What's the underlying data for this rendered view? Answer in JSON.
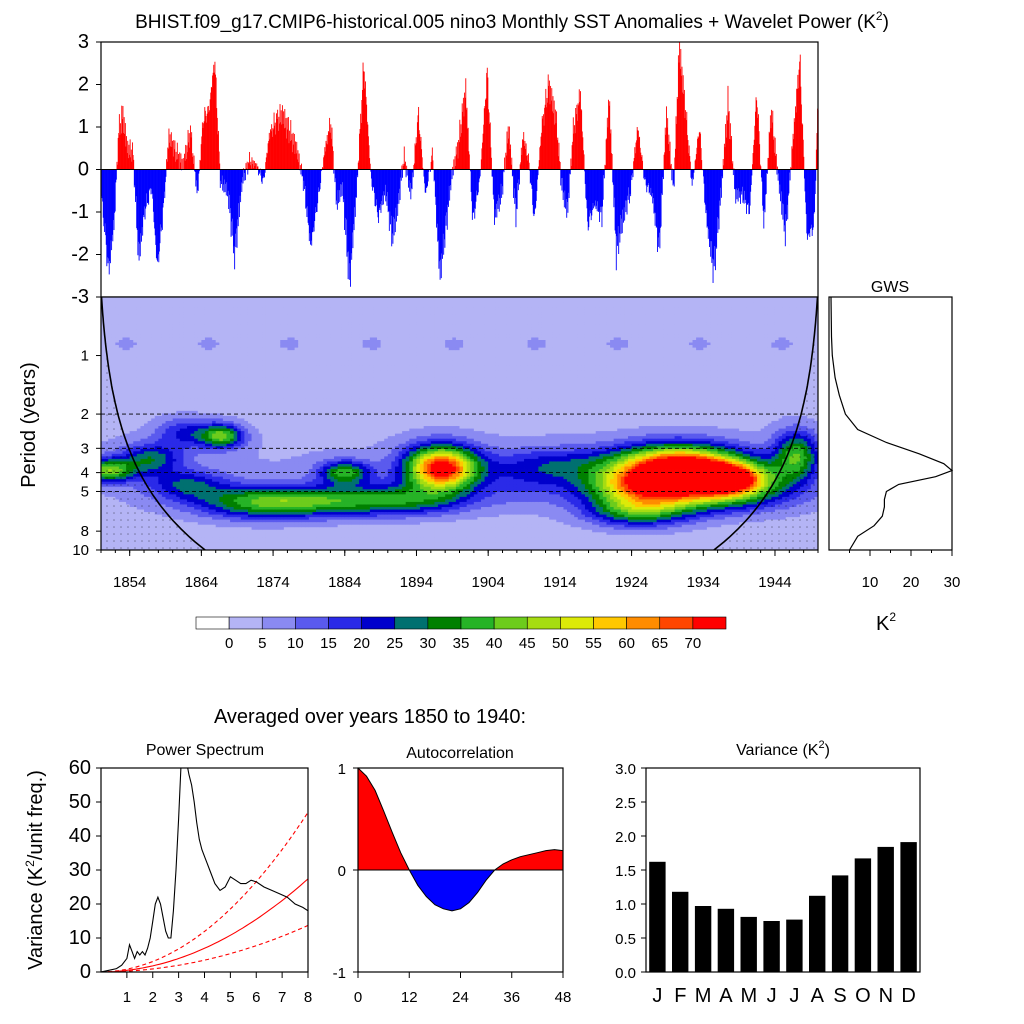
{
  "title": "BHIST.f09_g17.CMIP6-historical.005 nino3 Monthly SST Anomalies + Wavelet Power (K",
  "title_sup": "2",
  "title_close": ")",
  "colors": {
    "positive": "#ff0000",
    "negative": "#0000ff",
    "line": "#000000",
    "sig": "#ff0000"
  },
  "chart_data": [
    {
      "type": "area",
      "name": "sst-anomaly-timeseries",
      "ylim": [
        -3,
        3
      ],
      "yticks": [
        "3",
        "2",
        "1",
        "0",
        "-1",
        "-2",
        "-3"
      ],
      "ytick_values": [
        3,
        2,
        1,
        0,
        -1,
        -2,
        -3
      ],
      "xlim": [
        1850,
        1950
      ],
      "x": [
        1850.0,
        1851.0,
        1851.8,
        1852.4,
        1853.0,
        1853.6,
        1854.4,
        1855.2,
        1856.0,
        1857.0,
        1857.8,
        1858.6,
        1859.4,
        1860.4,
        1861.4,
        1862.4,
        1863.4,
        1864.2,
        1865.0,
        1865.8,
        1866.6,
        1867.6,
        1868.6,
        1869.6,
        1870.6,
        1871.6,
        1872.6,
        1873.4,
        1874.2,
        1875.2,
        1876.2,
        1877.2,
        1878.2,
        1879.2,
        1880.2,
        1881.2,
        1882.0,
        1882.8,
        1883.6,
        1884.6,
        1885.6,
        1886.6,
        1887.6,
        1888.6,
        1889.6,
        1890.6,
        1891.4,
        1892.2,
        1893.2,
        1894.2,
        1895.2,
        1896.2,
        1897.2,
        1898.0,
        1898.8,
        1899.8,
        1900.8,
        1901.8,
        1902.8,
        1903.8,
        1904.8,
        1905.8,
        1906.8,
        1907.8,
        1908.8,
        1909.6,
        1910.4,
        1911.4,
        1912.4,
        1913.4,
        1914.2,
        1915.0,
        1915.8,
        1916.8,
        1917.8,
        1918.8,
        1919.8,
        1920.8,
        1921.8,
        1922.8,
        1923.8,
        1924.8,
        1925.8,
        1926.8,
        1927.8,
        1928.8,
        1929.8,
        1930.6,
        1931.4,
        1932.4,
        1933.4,
        1934.4,
        1935.4,
        1936.4,
        1937.4,
        1938.4,
        1939.4,
        1940.4,
        1941.4,
        1942.4,
        1943.4,
        1944.4,
        1945.4,
        1946.4,
        1947.4,
        1948.4,
        1949.4,
        1950.0
      ],
      "y": [
        -0.6,
        -2.4,
        -1.2,
        0.9,
        1.3,
        0.5,
        0.4,
        -2.1,
        -1.0,
        -0.4,
        -2.3,
        -1.0,
        0.8,
        0.4,
        0.1,
        0.9,
        -0.6,
        1.2,
        1.4,
        2.6,
        -0.3,
        -0.5,
        -2.0,
        -0.3,
        0.2,
        0.1,
        -0.3,
        0.8,
        1.1,
        1.3,
        0.9,
        0.5,
        -0.3,
        -1.8,
        -0.7,
        0.5,
        1.1,
        -0.8,
        -0.4,
        -2.6,
        -0.5,
        2.5,
        -0.2,
        -1.1,
        -0.5,
        -1.6,
        -0.8,
        0.3,
        -0.6,
        1.3,
        -0.6,
        0.4,
        -2.5,
        -1.4,
        -0.2,
        0.6,
        1.9,
        -1.2,
        -0.2,
        2.3,
        -1.1,
        -0.6,
        1.0,
        -1.1,
        0.8,
        0.2,
        -1.2,
        1.0,
        2.0,
        1.2,
        -0.4,
        -1.0,
        0.9,
        1.8,
        -1.3,
        -0.8,
        -1.1,
        1.7,
        -1.9,
        -1.1,
        -0.5,
        1.0,
        -0.3,
        -0.6,
        -1.9,
        1.3,
        -0.5,
        2.9,
        1.5,
        -0.4,
        1.0,
        -1.2,
        -2.4,
        -0.6,
        1.6,
        -0.6,
        -0.6,
        -1.0,
        1.8,
        -1.3,
        1.4,
        -0.2,
        -1.5,
        0.6,
        2.6,
        -1.6,
        -1.3,
        1.9
      ]
    },
    {
      "type": "heatmap",
      "name": "wavelet-power",
      "ylabel": "Period (years)",
      "period_ticks": [
        "1",
        "2",
        "3",
        "4",
        "5",
        "8",
        "10"
      ],
      "period_tick_values": [
        1,
        2,
        3,
        4,
        5,
        8,
        10
      ],
      "period_range": [
        0.5,
        10
      ],
      "x_ticks": [
        "1854",
        "1864",
        "1874",
        "1884",
        "1894",
        "1904",
        "1914",
        "1924",
        "1934",
        "1944"
      ],
      "x_tick_values": [
        1854,
        1864,
        1874,
        1884,
        1894,
        1904,
        1914,
        1924,
        1934,
        1944
      ],
      "dashed_periods": [
        2,
        3,
        4,
        5
      ],
      "peaks": [
        {
          "t": 1897.5,
          "p": 3.8,
          "a": 72,
          "st": 3.5,
          "sp": 0.26
        },
        {
          "t": 1930.5,
          "p": 3.7,
          "a": 74,
          "st": 6.0,
          "sp": 0.25
        },
        {
          "t": 1938.0,
          "p": 4.3,
          "a": 55,
          "st": 4.0,
          "sp": 0.2
        },
        {
          "t": 1934.0,
          "p": 5.2,
          "a": 30,
          "st": 8.0,
          "sp": 0.22
        },
        {
          "t": 1925.0,
          "p": 6.2,
          "a": 34,
          "st": 5.0,
          "sp": 0.2
        },
        {
          "t": 1880.5,
          "p": 5.6,
          "a": 30,
          "st": 10.0,
          "sp": 0.18
        },
        {
          "t": 1884.0,
          "p": 4.0,
          "a": 33,
          "st": 2.5,
          "sp": 0.14
        },
        {
          "t": 1867.0,
          "p": 2.6,
          "a": 36,
          "st": 2.0,
          "sp": 0.14
        },
        {
          "t": 1862.0,
          "p": 2.5,
          "a": 18,
          "st": 3.0,
          "sp": 0.18
        },
        {
          "t": 1857.0,
          "p": 3.4,
          "a": 24,
          "st": 3.0,
          "sp": 0.18
        },
        {
          "t": 1851.0,
          "p": 3.9,
          "a": 38,
          "st": 2.5,
          "sp": 0.14
        },
        {
          "t": 1862.0,
          "p": 4.6,
          "a": 20,
          "st": 4.0,
          "sp": 0.18
        },
        {
          "t": 1947.0,
          "p": 3.3,
          "a": 34,
          "st": 2.2,
          "sp": 0.3
        },
        {
          "t": 1915.0,
          "p": 3.6,
          "a": 14,
          "st": 6.0,
          "sp": 0.2
        },
        {
          "t": 1909.0,
          "p": 4.3,
          "a": 11,
          "st": 5.0,
          "sp": 0.3
        },
        {
          "t": 1926.0,
          "p": 4.6,
          "a": 40,
          "st": 6.0,
          "sp": 0.2
        },
        {
          "t": 1872.0,
          "p": 5.8,
          "a": 18,
          "st": 6.0,
          "sp": 0.2
        },
        {
          "t": 1893.0,
          "p": 5.5,
          "a": 16,
          "st": 6.0,
          "sp": 0.18
        }
      ],
      "gws": {
        "label": "GWS",
        "unit": "K",
        "unit_sup": "2",
        "xlim": [
          0,
          30
        ],
        "x_ticks": [
          "10",
          "20",
          "30"
        ],
        "x_tick_values": [
          10,
          20,
          30
        ],
        "period": [
          0.5,
          0.8,
          1.0,
          1.3,
          1.6,
          2.0,
          2.4,
          2.8,
          3.2,
          3.6,
          3.9,
          4.2,
          4.6,
          5.0,
          5.5,
          6.0,
          6.7,
          7.5,
          8.5,
          10.0
        ],
        "power": [
          0.5,
          0.6,
          0.8,
          1.5,
          2.5,
          4,
          7,
          14,
          22,
          28,
          30,
          26,
          17,
          14,
          13.5,
          13.5,
          13,
          11,
          7,
          5
        ]
      },
      "colorbar": {
        "labels": [
          "0",
          "5",
          "10",
          "15",
          "20",
          "25",
          "30",
          "35",
          "40",
          "45",
          "50",
          "55",
          "60",
          "65",
          "70"
        ],
        "values": [
          0,
          5,
          10,
          15,
          20,
          25,
          30,
          35,
          40,
          45,
          50,
          55,
          60,
          65,
          70
        ],
        "colors": [
          "#ffffff",
          "#b4b4f5",
          "#8a8af2",
          "#5a5aee",
          "#2a2ae8",
          "#0000cc",
          "#007070",
          "#008000",
          "#26b326",
          "#6dcc1c",
          "#a6dc12",
          "#dcea08",
          "#ffc800",
          "#ff8c00",
          "#ff4600",
          "#ff0000"
        ]
      }
    },
    {
      "type": "line",
      "name": "power-spectrum",
      "title": "Power Spectrum",
      "ylabel": "Variance (K",
      "ylabel_sup": "2",
      "ylabel_tail": "/unit freq.)",
      "xlim": [
        0,
        8
      ],
      "ylim": [
        0,
        60
      ],
      "x_ticks": [
        "1",
        "2",
        "3",
        "4",
        "5",
        "6",
        "7",
        "8"
      ],
      "x_tick_values": [
        1,
        2,
        3,
        4,
        5,
        6,
        7,
        8
      ],
      "y_ticks": [
        "0",
        "10",
        "20",
        "30",
        "40",
        "50",
        "60"
      ],
      "y_tick_values": [
        0,
        10,
        20,
        30,
        40,
        50,
        60
      ],
      "x": [
        0.0,
        0.3,
        0.6,
        0.8,
        1.0,
        1.1,
        1.2,
        1.3,
        1.4,
        1.5,
        1.6,
        1.7,
        1.8,
        1.9,
        2.0,
        2.1,
        2.2,
        2.3,
        2.4,
        2.5,
        2.6,
        2.7,
        2.8,
        2.9,
        3.0,
        3.1,
        3.2,
        3.3,
        3.4,
        3.5,
        3.6,
        3.7,
        3.8,
        3.9,
        4.0,
        4.1,
        4.2,
        4.4,
        4.6,
        4.8,
        5.0,
        5.2,
        5.4,
        5.6,
        5.8,
        6.0,
        6.3,
        6.6,
        6.9,
        7.2,
        7.5,
        7.8,
        8.0
      ],
      "y": [
        0,
        0.5,
        1,
        2,
        4,
        8,
        6,
        4,
        6,
        5,
        6,
        5,
        7,
        10,
        15,
        20,
        22,
        20,
        16,
        12,
        10,
        10,
        18,
        30,
        45,
        62,
        65,
        62,
        58,
        55,
        50,
        44,
        39,
        36,
        34,
        32,
        30,
        26,
        24,
        25,
        28,
        27,
        26,
        26,
        27,
        26.5,
        25,
        24,
        23,
        22,
        20,
        19,
        18
      ],
      "significance": [
        {
          "name": "",
          "a": 0.72,
          "style": "dashed"
        },
        {
          "name": "",
          "a": 0.42,
          "style": "solid"
        },
        {
          "name": "",
          "a": 0.21,
          "style": "dashed"
        }
      ]
    },
    {
      "type": "area",
      "name": "autocorrelation",
      "title": "Autocorrelation",
      "xlim": [
        0,
        48
      ],
      "ylim": [
        -1,
        1
      ],
      "x_ticks": [
        "0",
        "12",
        "24",
        "36",
        "48"
      ],
      "x_tick_values": [
        0,
        12,
        24,
        36,
        48
      ],
      "y_ticks": [
        "1",
        "0",
        "-1"
      ],
      "y_tick_values": [
        1,
        0,
        -1
      ],
      "x": [
        0,
        2,
        4,
        6,
        8,
        10,
        12,
        14,
        16,
        18,
        20,
        22,
        24,
        26,
        28,
        30,
        32,
        34,
        36,
        38,
        40,
        42,
        44,
        46,
        48
      ],
      "y": [
        1.0,
        0.92,
        0.78,
        0.58,
        0.37,
        0.17,
        0.0,
        -0.15,
        -0.26,
        -0.34,
        -0.38,
        -0.4,
        -0.38,
        -0.32,
        -0.22,
        -0.1,
        0.0,
        0.06,
        0.1,
        0.13,
        0.15,
        0.17,
        0.19,
        0.2,
        0.19
      ]
    },
    {
      "type": "bar",
      "name": "monthly-variance",
      "title": "Variance (K",
      "title_sup": "2",
      "title_close": ")",
      "categories": [
        "J",
        "F",
        "M",
        "A",
        "M",
        "J",
        "J",
        "A",
        "S",
        "O",
        "N",
        "D"
      ],
      "values": [
        1.62,
        1.18,
        0.97,
        0.93,
        0.81,
        0.75,
        0.77,
        1.12,
        1.42,
        1.67,
        1.84,
        1.91
      ],
      "ylim": [
        0,
        3
      ],
      "y_ticks": [
        "3.0",
        "2.5",
        "2.0",
        "1.5",
        "1.0",
        "0.5",
        "0.0"
      ],
      "y_tick_values": [
        3.0,
        2.5,
        2.0,
        1.5,
        1.0,
        0.5,
        0.0
      ]
    }
  ],
  "footer_caption": "Averaged over years 1850 to 1940:"
}
